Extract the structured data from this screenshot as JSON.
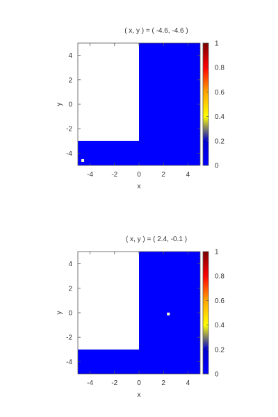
{
  "chart_data": [
    {
      "type": "heatmap",
      "title": "( x, y ) = ( -4.6, -4.6 )",
      "xlabel": "x",
      "ylabel": "y",
      "xlim": [
        -5,
        5
      ],
      "ylim": [
        -5,
        5
      ],
      "xticks": [
        -4,
        -2,
        0,
        2,
        4
      ],
      "yticks": [
        -4,
        -2,
        0,
        2,
        4
      ],
      "colorbar": {
        "range": [
          0,
          1
        ],
        "ticks": [
          0,
          0.2,
          0.4,
          0.6,
          0.8,
          1
        ],
        "tick_labels": [
          "0",
          "0.2",
          "0.4",
          "0.6",
          "0.8",
          "1"
        ],
        "colors": [
          "#0000ff",
          "#0000cc",
          "#ffff00",
          "#ffa500",
          "#ff0000",
          "#7a0000"
        ]
      },
      "regions": [
        {
          "name": "L-shaped domain",
          "value": 0,
          "color": "#0000ff",
          "polygon": [
            [
              0,
              5
            ],
            [
              5,
              5
            ],
            [
              5,
              -5
            ],
            [
              -5,
              -5
            ],
            [
              -5,
              -3
            ],
            [
              0,
              -3
            ]
          ]
        },
        {
          "name": "excluded",
          "value": null,
          "color": "#ffffff",
          "polygon": [
            [
              -5,
              5
            ],
            [
              0,
              5
            ],
            [
              0,
              -3
            ],
            [
              -5,
              -3
            ]
          ]
        }
      ],
      "points": [
        {
          "x": -4.6,
          "y": -4.6,
          "color": "#ffffcc"
        }
      ],
      "grid": false,
      "legend": "colorbar-right"
    },
    {
      "type": "heatmap",
      "title": "( x, y ) = ( 2.4, -0.1 )",
      "xlabel": "x",
      "ylabel": "y",
      "xlim": [
        -5,
        5
      ],
      "ylim": [
        -5,
        5
      ],
      "xticks": [
        -4,
        -2,
        0,
        2,
        4
      ],
      "yticks": [
        -4,
        -2,
        0,
        2,
        4
      ],
      "colorbar": {
        "range": [
          0,
          1
        ],
        "ticks": [
          0,
          0.2,
          0.4,
          0.6,
          0.8,
          1
        ],
        "tick_labels": [
          "0",
          "0.2",
          "0.4",
          "0.6",
          "0.8",
          "1"
        ],
        "colors": [
          "#0000ff",
          "#0000cc",
          "#ffff00",
          "#ffa500",
          "#ff0000",
          "#7a0000"
        ]
      },
      "regions": [
        {
          "name": "L-shaped domain",
          "value": 0,
          "color": "#0000ff",
          "polygon": [
            [
              0,
              5
            ],
            [
              5,
              5
            ],
            [
              5,
              -5
            ],
            [
              -5,
              -5
            ],
            [
              -5,
              -3
            ],
            [
              0,
              -3
            ]
          ]
        },
        {
          "name": "excluded",
          "value": null,
          "color": "#ffffff",
          "polygon": [
            [
              -5,
              5
            ],
            [
              0,
              5
            ],
            [
              0,
              -3
            ],
            [
              -5,
              -3
            ]
          ]
        }
      ],
      "points": [
        {
          "x": 2.4,
          "y": -0.1,
          "color": "#ffffcc"
        }
      ],
      "grid": false,
      "legend": "colorbar-right"
    }
  ]
}
